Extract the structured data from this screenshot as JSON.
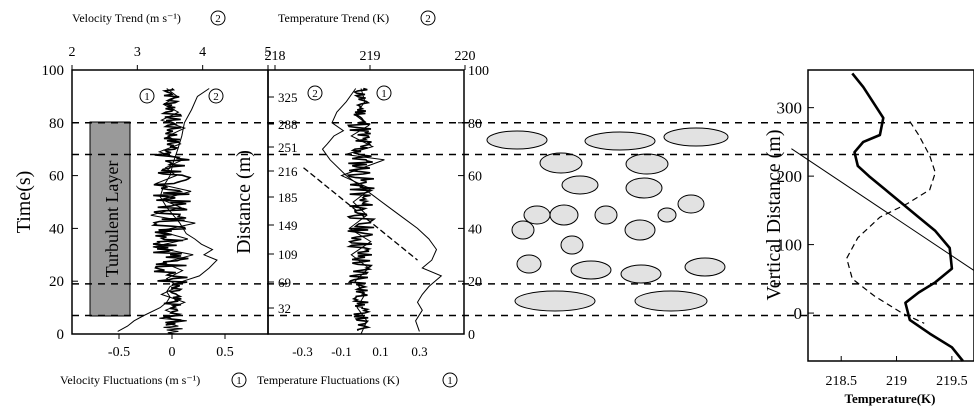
{
  "top_labels": {
    "velocity_trend": "Velocity Trend (m s⁻¹)",
    "temperature_trend": "Temperature Trend (K)",
    "marker_2": "2"
  },
  "bottom_labels": {
    "velocity_fluct": "Velocity Fluctuations (m s⁻¹)",
    "temperature_fluct": "Temperature Fluctuations (K)",
    "marker_1": "1"
  },
  "panel_a": {
    "ylabel": "Time(s)",
    "layer_label": "Turbulent Layer",
    "time_ticks": [
      "0",
      "20",
      "40",
      "60",
      "80",
      "100"
    ],
    "vel_trend_ticks": [
      "2",
      "3",
      "4",
      "5"
    ],
    "vel_fluct_ticks": [
      "-0.5",
      "0",
      "0.5"
    ],
    "marker1": "1",
    "marker2": "2"
  },
  "panel_b": {
    "ylabel": "Distance (m)",
    "distance_ticks": [
      "32",
      "69",
      "109",
      "149",
      "185",
      "216",
      "251",
      "288",
      "325"
    ],
    "temp_trend_ticks": [
      "218",
      "219",
      "220"
    ],
    "temp_fluct_ticks": [
      "-0.3",
      "-0.1",
      "0.1",
      "0.3"
    ],
    "right_time_ticks": [
      "0",
      "20",
      "40",
      "60",
      "80",
      "100"
    ],
    "marker1": "1",
    "marker2": "2"
  },
  "panel_c": {
    "ylabel": "Vertical Distance (m)",
    "xlabel": "Temperature(K)",
    "y_ticks": [
      "0",
      "100",
      "200",
      "300"
    ],
    "x_ticks": [
      "218.5",
      "219",
      "219.5"
    ]
  },
  "chart_data": [
    {
      "type": "line",
      "name": "velocity-time-series",
      "y_axis": {
        "label": "Time(s)",
        "range": [
          0,
          100
        ]
      },
      "x_axis_top": {
        "label": "Velocity Trend (m s⁻¹)",
        "range": [
          2,
          5
        ],
        "ticks": [
          2,
          3,
          4,
          5
        ]
      },
      "x_axis_bottom": {
        "label": "Velocity Fluctuations (m s⁻¹)",
        "ticks": [
          -0.5,
          0,
          0.5
        ]
      },
      "turbulent_layer_time": [
        7,
        80
      ],
      "layer_boundaries_time": [
        7,
        19,
        68,
        80
      ],
      "series": [
        {
          "name": "1",
          "axis": "bottom",
          "x": [
            -0.05,
            0.05,
            -0.08,
            0.06,
            -0.1,
            0.12,
            -0.04,
            0.08,
            -0.12,
            0.1,
            -0.06,
            0.04,
            -0.15,
            0.18,
            -0.1,
            0.08,
            -0.2,
            0.22,
            -0.12,
            0.15,
            -0.18,
            0.2,
            -0.08,
            0.1,
            -0.05,
            0.06,
            -0.1,
            0.12,
            -0.06,
            0.07,
            -0.12,
            0.14,
            -0.05,
            0.06,
            -0.08,
            0.1,
            -0.05,
            0.06,
            -0.04,
            0.03
          ],
          "y": [
            93,
            90,
            87,
            84,
            81,
            78,
            75,
            72,
            69,
            66,
            63,
            60,
            57,
            54,
            51,
            48,
            45,
            42,
            39,
            36,
            33,
            30,
            27,
            24,
            21,
            18,
            15,
            12,
            9,
            7,
            6,
            5,
            4,
            3,
            2.5,
            2,
            1.5,
            1,
            0.5,
            0
          ]
        },
        {
          "name": "2",
          "axis": "top",
          "x": [
            4.1,
            3.92,
            3.83,
            3.72,
            3.68,
            3.62,
            3.55,
            3.5,
            3.4,
            3.35,
            3.45,
            3.55,
            3.65,
            3.75,
            3.88,
            3.98,
            4.15,
            4.02,
            4.22,
            4.1,
            3.95,
            3.7,
            3.5,
            3.45,
            3.5,
            3.45,
            3.35,
            3.1,
            2.95,
            2.85,
            2.7
          ],
          "y": [
            93,
            90,
            85,
            80,
            75,
            70,
            65,
            60,
            56,
            52,
            48,
            45,
            42,
            38,
            36,
            34,
            32,
            30,
            28,
            25,
            22,
            20,
            18,
            16,
            14,
            12,
            10,
            7,
            5,
            3,
            1
          ]
        }
      ]
    },
    {
      "type": "line",
      "name": "temperature-time-series",
      "y_axis_left": {
        "label": "Distance (m)",
        "ticks": [
          32,
          69,
          109,
          149,
          185,
          216,
          251,
          288,
          325
        ]
      },
      "y_axis_right": {
        "range": [
          0,
          100
        ],
        "ticks": [
          0,
          20,
          40,
          60,
          80,
          100
        ]
      },
      "x_axis_top": {
        "label": "Temperature Trend (K)",
        "range": [
          218,
          220
        ],
        "ticks": [
          218,
          219,
          220
        ]
      },
      "x_axis_bottom": {
        "label": "Temperature Fluctuations (K)",
        "ticks": [
          -0.3,
          -0.1,
          0.1,
          0.3
        ]
      },
      "series": [
        {
          "name": "1",
          "axis": "bottom",
          "x": [
            0.0,
            0.02,
            -0.03,
            0.04,
            -0.05,
            0.06,
            -0.08,
            0.12,
            -0.1,
            0.05,
            -0.04,
            0.03,
            -0.06,
            0.05,
            -0.05,
            0.04,
            -0.03,
            0.02,
            -0.02,
            0.03,
            0.0
          ],
          "y": [
            93,
            88,
            83,
            79,
            75,
            71,
            68,
            66,
            60,
            55,
            50,
            45,
            40,
            35,
            30,
            25,
            20,
            15,
            10,
            5,
            0
          ]
        },
        {
          "name": "2",
          "axis": "top",
          "x": [
            218.85,
            218.75,
            218.65,
            218.6,
            218.72,
            218.62,
            218.55,
            218.5,
            218.58,
            218.75,
            218.9,
            219.05,
            219.2,
            219.35,
            219.5,
            219.62,
            219.7,
            219.65,
            219.55,
            219.75,
            219.62,
            219.55,
            219.5,
            219.55,
            219.48,
            219.52
          ],
          "y": [
            93,
            88,
            84,
            80,
            77,
            75,
            72,
            70,
            66,
            60,
            56,
            52,
            48,
            44,
            40,
            36,
            32,
            28,
            25,
            22,
            18,
            15,
            12,
            9,
            5,
            1
          ]
        },
        {
          "name": "reference-line",
          "axis": "top",
          "x": [
            218.3,
            219.5
          ],
          "y": [
            63,
            28
          ]
        }
      ]
    },
    {
      "type": "line",
      "name": "temperature-profile",
      "xlabel": "Temperature(K)",
      "ylabel": "Vertical Distance (m)",
      "xlim": [
        218.2,
        219.7
      ],
      "ylim": [
        -70,
        355
      ],
      "x_ticks": [
        218.5,
        219,
        219.5
      ],
      "y_ticks": [
        0,
        100,
        200,
        300
      ],
      "series": [
        {
          "name": "measured",
          "style": "solid-thick",
          "x": [
            218.6,
            218.7,
            218.8,
            218.88,
            218.85,
            218.7,
            218.62,
            218.65,
            218.75,
            218.9,
            219.05,
            219.2,
            219.35,
            219.48,
            219.5,
            219.35,
            219.2,
            219.08,
            219.12,
            219.3,
            219.5,
            219.6
          ],
          "y": [
            350,
            330,
            305,
            285,
            260,
            250,
            235,
            215,
            200,
            180,
            160,
            140,
            120,
            95,
            65,
            45,
            30,
            15,
            -10,
            -30,
            -50,
            -70
          ]
        },
        {
          "name": "dashed",
          "style": "dashed",
          "x": [
            219.12,
            219.2,
            219.3,
            219.35,
            219.3,
            219.1,
            218.85,
            218.65,
            218.55,
            218.6,
            218.8,
            219.05,
            219.25
          ],
          "y": [
            280,
            260,
            230,
            205,
            180,
            160,
            140,
            110,
            80,
            50,
            25,
            0,
            -15
          ]
        },
        {
          "name": "straight",
          "style": "solid-thin",
          "x": [
            218.05,
            219.72
          ],
          "y": [
            240,
            60
          ]
        }
      ]
    }
  ]
}
